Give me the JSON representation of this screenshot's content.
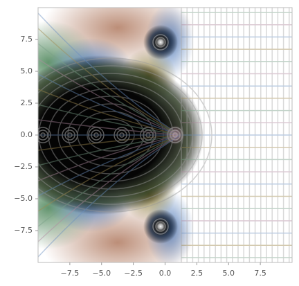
{
  "chart_data": {
    "type": "domain-coloring",
    "xlim": [
      -10,
      10
    ],
    "ylim": [
      -10,
      10
    ],
    "xticks": [
      {
        "value": -7.5,
        "label": "−7.5"
      },
      {
        "value": -5,
        "label": "−5.0"
      },
      {
        "value": -2.5,
        "label": "−2.5"
      },
      {
        "value": 0,
        "label": "0.0"
      },
      2.5,
      {
        "value": 5,
        "label": "5.0"
      },
      7.5
    ],
    "yticks": [
      {
        "value": -7.5,
        "label": "−7.5"
      },
      {
        "value": -5,
        "label": "−5.0"
      },
      {
        "value": -2.5,
        "label": "−2.5"
      },
      {
        "value": 0,
        "label": "0.0"
      },
      2.5,
      {
        "value": 5,
        "label": "5.0"
      },
      7.5
    ]
  }
}
